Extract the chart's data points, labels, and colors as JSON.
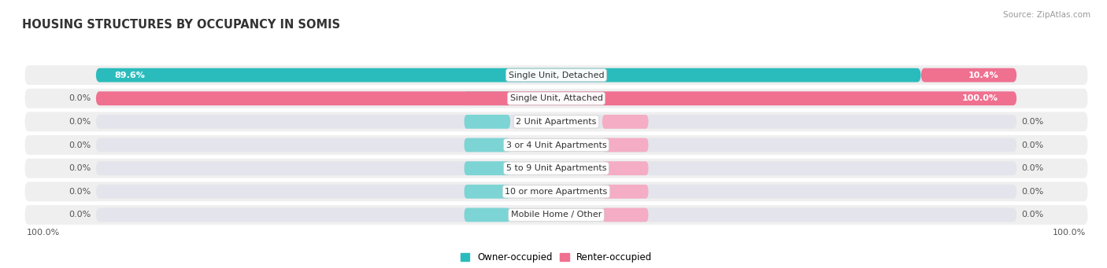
{
  "title": "HOUSING STRUCTURES BY OCCUPANCY IN SOMIS",
  "source": "Source: ZipAtlas.com",
  "categories": [
    "Single Unit, Detached",
    "Single Unit, Attached",
    "2 Unit Apartments",
    "3 or 4 Unit Apartments",
    "5 to 9 Unit Apartments",
    "10 or more Apartments",
    "Mobile Home / Other"
  ],
  "owner_values": [
    89.6,
    0.0,
    0.0,
    0.0,
    0.0,
    0.0,
    0.0
  ],
  "renter_values": [
    10.4,
    100.0,
    0.0,
    0.0,
    0.0,
    0.0,
    0.0
  ],
  "owner_color": "#2abcbc",
  "renter_color": "#f07090",
  "bar_bg_color": "#e4e4ec",
  "row_bg_color": "#efefef",
  "background_color": "#ffffff",
  "title_color": "#333333",
  "label_font_size": 8.0,
  "title_font_size": 10.5,
  "axis_label_font_size": 8.0,
  "legend_font_size": 8.5,
  "bottom_left_label": "100.0%",
  "bottom_right_label": "100.0%"
}
